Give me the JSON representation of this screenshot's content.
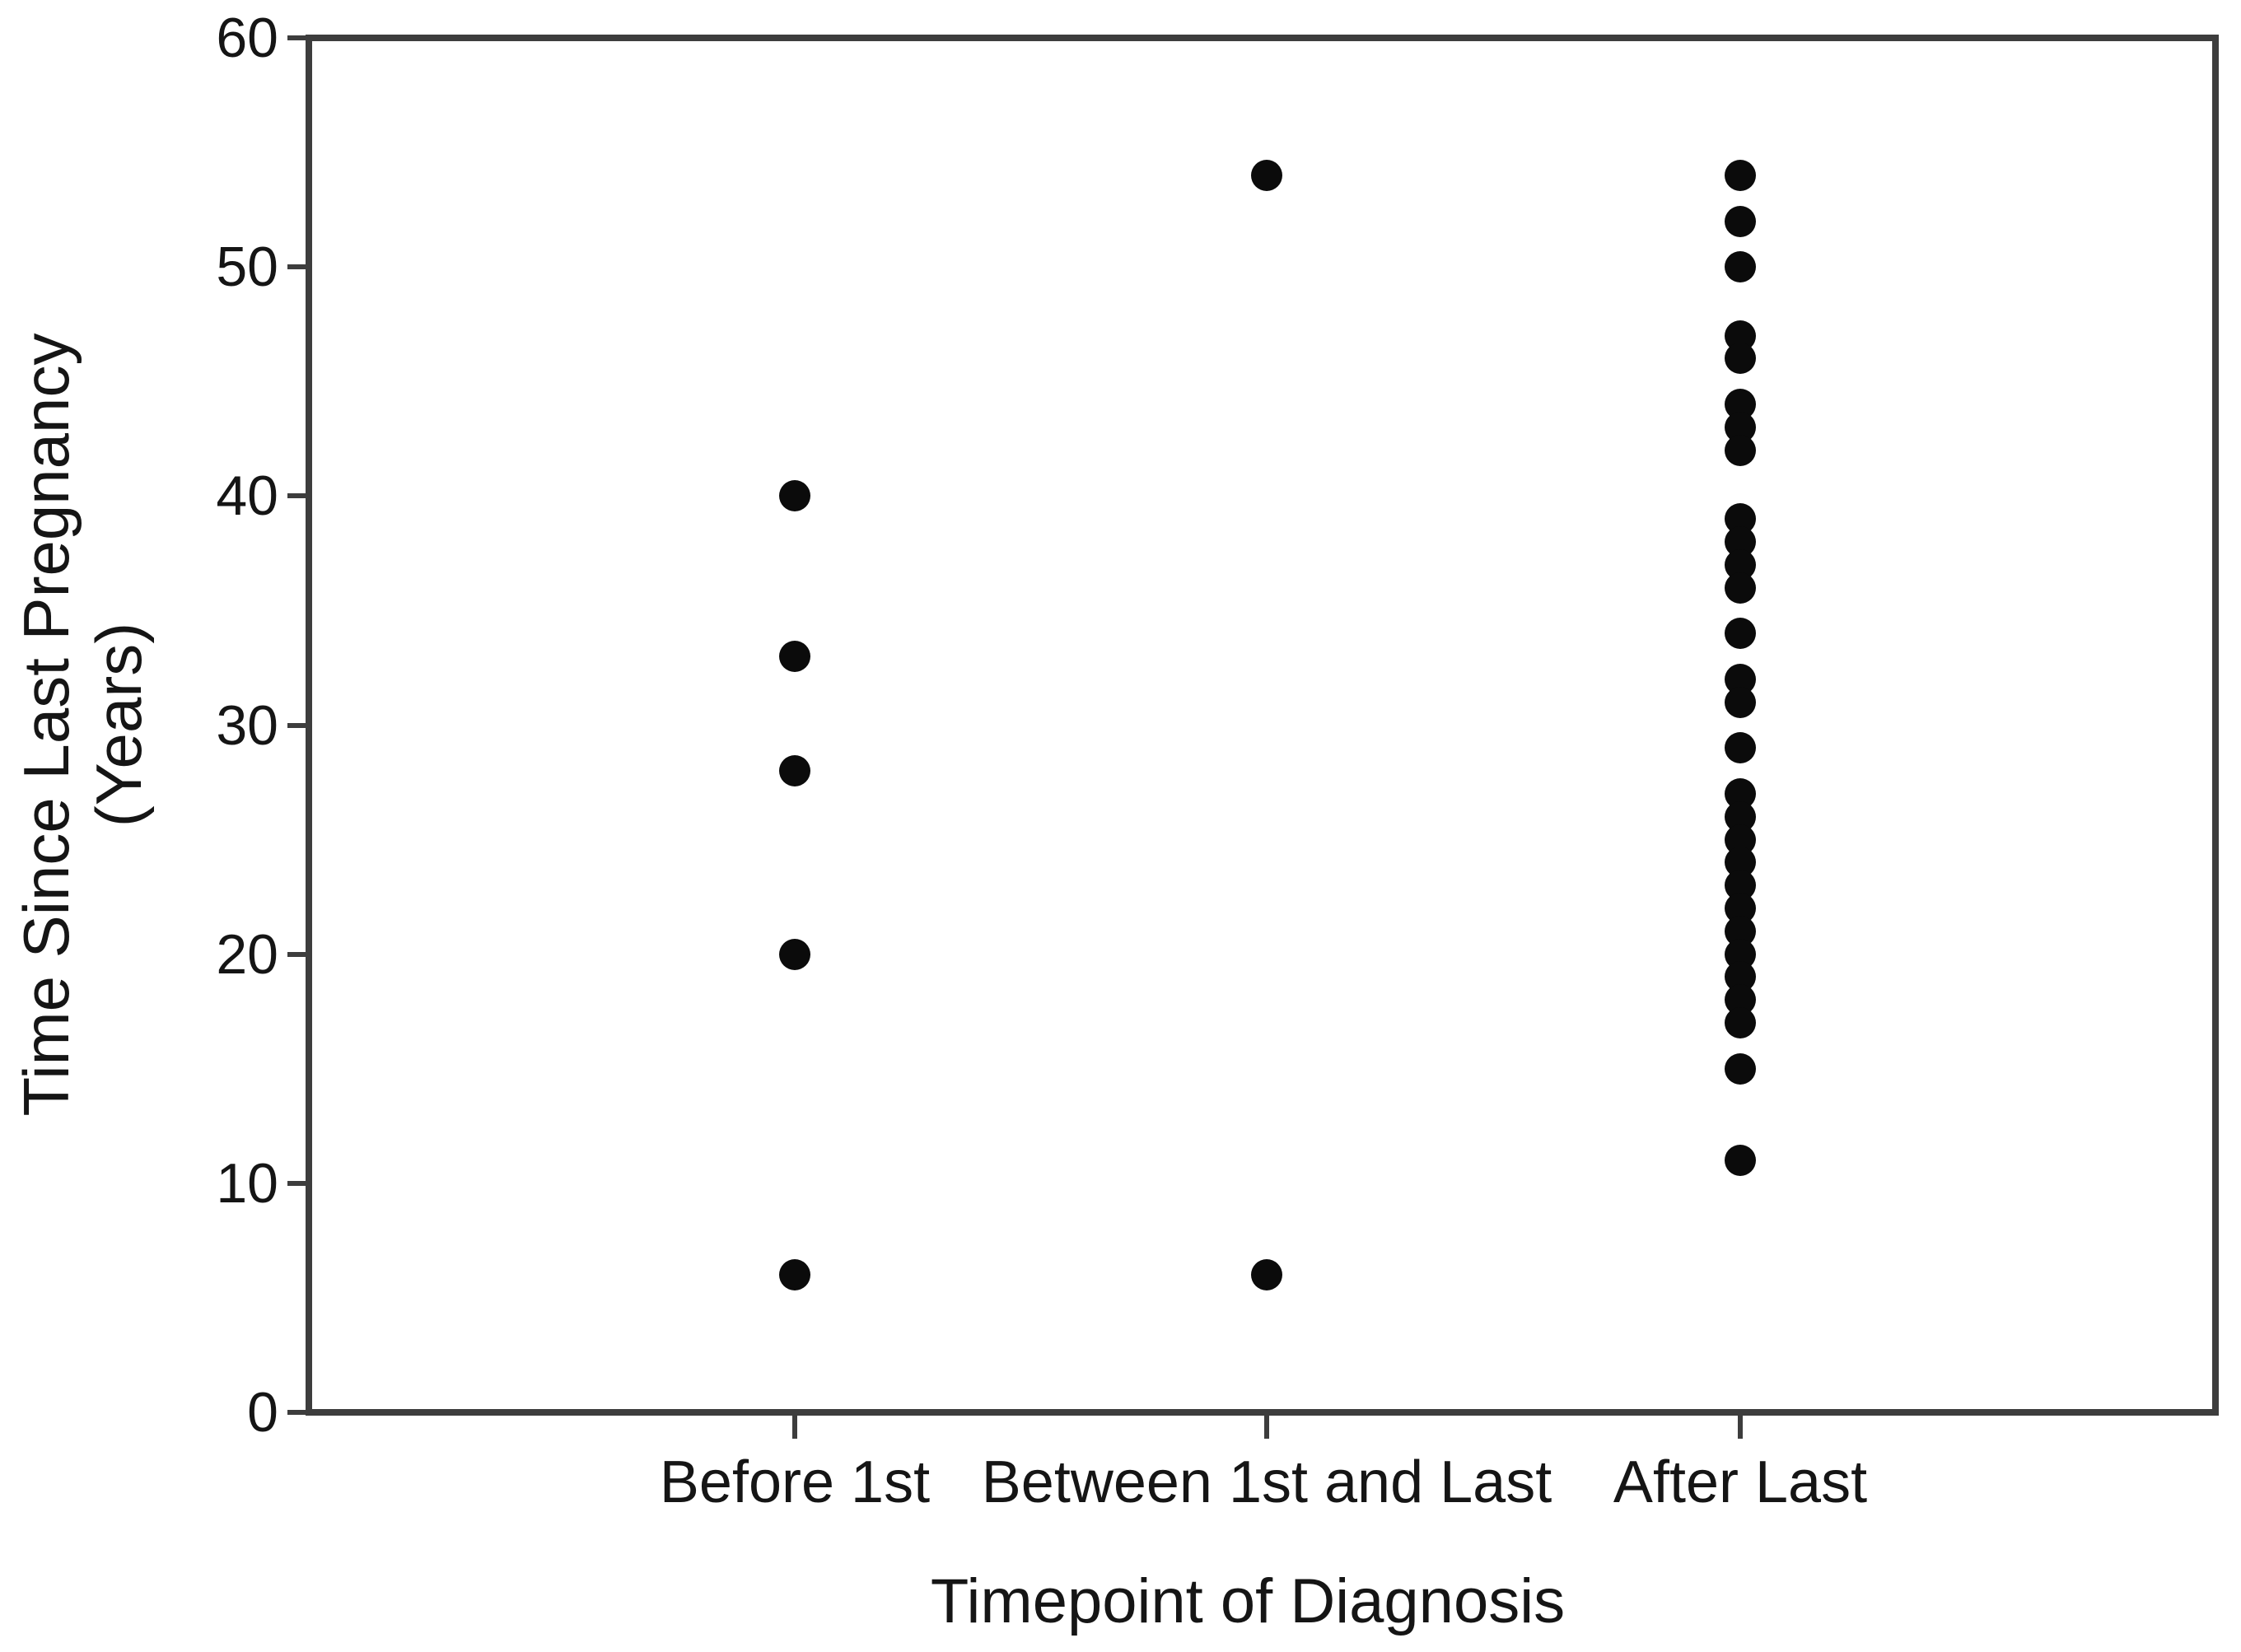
{
  "figure": {
    "background_color": "#ffffff",
    "axis_color": "#3d3d3d",
    "text_color": "#151515",
    "dot_color": "#0b0b0b"
  },
  "chart_data": {
    "type": "scatter",
    "title": "",
    "xlabel": "Timepoint of Diagnosis",
    "ylabel_lines": [
      "Time Since Last Pregnancy",
      "(Years)"
    ],
    "ylabel": "Time Since Last Pregnancy (Years)",
    "categories": [
      "Before 1st",
      "Between 1st and Last",
      "After Last"
    ],
    "ylim": [
      0,
      60
    ],
    "yticks": [
      0,
      10,
      20,
      30,
      40,
      50,
      60
    ],
    "grid": false,
    "legend": null,
    "marker": "filled-circle",
    "series": [
      {
        "name": "Before 1st",
        "values": [
          40,
          33,
          28,
          20,
          6
        ]
      },
      {
        "name": "Between 1st and Last",
        "values": [
          54,
          6
        ]
      },
      {
        "name": "After Last",
        "values": [
          54,
          52,
          50,
          47,
          46,
          44,
          43,
          42,
          39,
          38,
          37,
          36,
          34,
          32,
          31,
          29,
          27,
          26,
          25,
          24,
          23,
          22,
          21,
          20,
          19,
          18,
          17,
          15,
          11
        ]
      }
    ]
  }
}
